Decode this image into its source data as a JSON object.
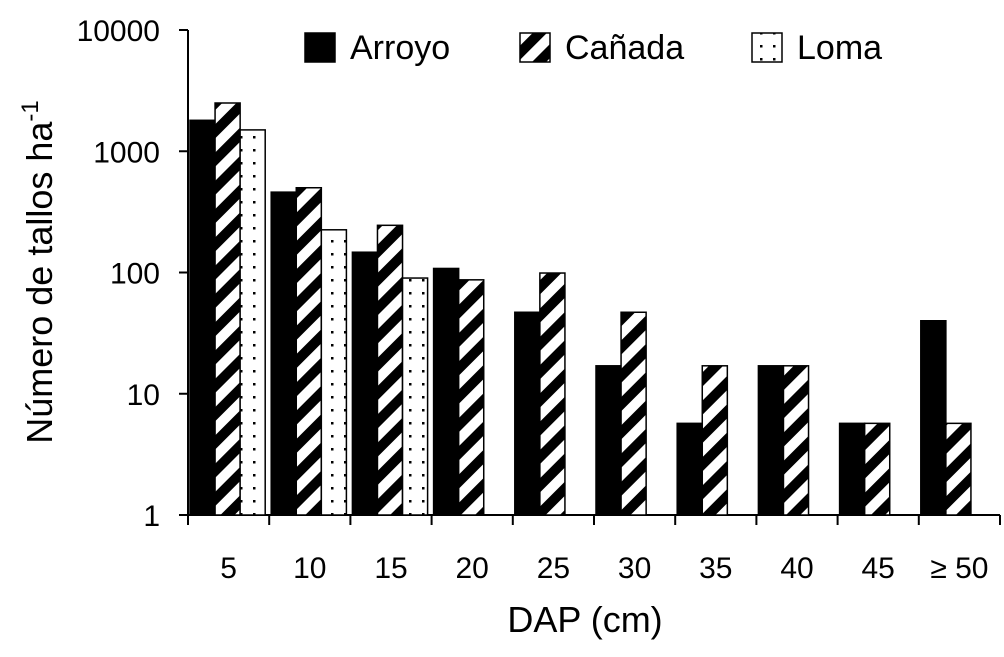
{
  "chart_data": {
    "type": "bar",
    "y_label": "Número de tallos ha",
    "y_label_sup": "-1",
    "x_label": "DAP (cm)",
    "categories": [
      "5",
      "10",
      "15",
      "20",
      "25",
      "30",
      "35",
      "40",
      "45",
      "≥ 50"
    ],
    "series": [
      {
        "name": "Arroyo",
        "color": "#000000",
        "pattern": "solid",
        "values": [
          1800,
          460,
          147,
          108,
          47,
          17,
          5.7,
          17,
          5.7,
          40
        ]
      },
      {
        "name": "Cañada",
        "color": "#000000",
        "pattern": "diagonal",
        "values": [
          2500,
          500,
          245,
          87,
          99,
          47,
          17,
          17,
          5.7,
          5.7
        ]
      },
      {
        "name": "Loma",
        "color": "#000000",
        "pattern": "dots",
        "values": [
          1500,
          225,
          90,
          null,
          null,
          null,
          null,
          null,
          null,
          null
        ]
      }
    ],
    "ylim": [
      1,
      10000
    ],
    "yticks": [
      1,
      10,
      100,
      1000,
      10000
    ],
    "log_y": true,
    "legend": "top"
  }
}
